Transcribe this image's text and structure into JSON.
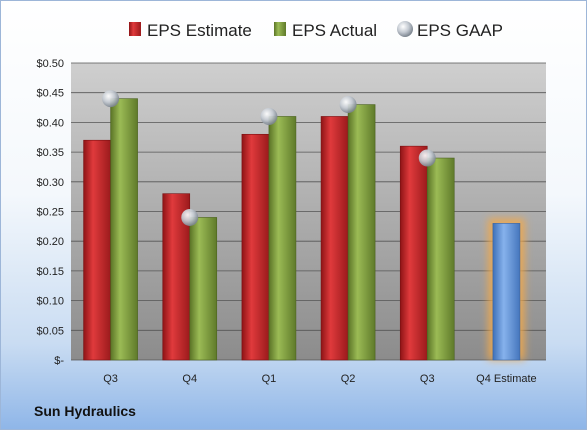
{
  "company": "Sun Hydraulics",
  "colors": {
    "estimate": "#c0282a",
    "actual": "#7b9a3c",
    "gaap": "#b8c0c8",
    "forecast": "#5b8fd6",
    "forecast_glow": "#f2a94b",
    "plot_top": "#cfcfcf",
    "plot_bottom": "#8c8c8c"
  },
  "chart_data": {
    "type": "bar",
    "categories": [
      "Q3",
      "Q4",
      "Q1",
      "Q2",
      "Q3",
      "Q4 Estimate"
    ],
    "series": [
      {
        "name": "EPS Estimate",
        "values": [
          0.37,
          0.28,
          0.38,
          0.41,
          0.36,
          null
        ]
      },
      {
        "name": "EPS Actual",
        "values": [
          0.44,
          0.24,
          0.41,
          0.43,
          0.34,
          0.23
        ]
      },
      {
        "name": "EPS GAAP",
        "values": [
          0.44,
          0.24,
          0.41,
          0.43,
          0.34,
          null
        ]
      }
    ],
    "legend": [
      "EPS Estimate",
      "EPS Actual",
      "EPS GAAP"
    ],
    "legend_position": "top",
    "ylim": [
      0,
      0.5
    ],
    "yticks": [
      0,
      0.05,
      0.1,
      0.15,
      0.2,
      0.25,
      0.3,
      0.35,
      0.4,
      0.45,
      0.5
    ],
    "ytick_labels": [
      "$-",
      "$0.05",
      "$0.10",
      "$0.15",
      "$0.20",
      "$0.25",
      "$0.30",
      "$0.35",
      "$0.40",
      "$0.45",
      "$0.50"
    ],
    "grid": true,
    "forecast_category": "Q4 Estimate"
  }
}
